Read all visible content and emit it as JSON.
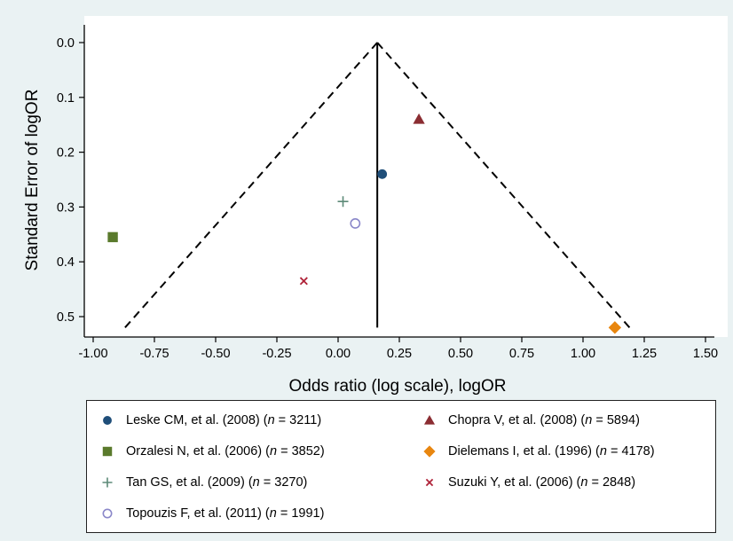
{
  "chart_data": {
    "type": "scatter",
    "subtype": "funnel-plot",
    "xlabel": "Odds ratio (log scale), logOR",
    "ylabel": "Standard Error of logOR",
    "xlim": [
      -1.0,
      1.5
    ],
    "ylim": [
      0.0,
      0.5
    ],
    "y_reversed": true,
    "x_ticks": [
      "-1.00",
      "-0.75",
      "-0.50",
      "-0.25",
      "0.00",
      "0.25",
      "0.50",
      "0.75",
      "1.00",
      "1.25",
      "1.50"
    ],
    "x_tick_values": [
      -1.0,
      -0.75,
      -0.5,
      -0.25,
      0.0,
      0.25,
      0.5,
      0.75,
      1.0,
      1.25,
      1.5
    ],
    "y_ticks": [
      "0.0",
      "0.1",
      "0.2",
      "0.3",
      "0.4",
      "0.5"
    ],
    "y_tick_values": [
      0.0,
      0.1,
      0.2,
      0.3,
      0.4,
      0.5
    ],
    "grid": false,
    "pooled_estimate": 0.16,
    "funnel": {
      "apex": [
        0.16,
        0.0
      ],
      "left_base": [
        -0.87,
        0.52
      ],
      "right_base": [
        1.19,
        0.52
      ],
      "style": "dashed"
    },
    "series": [
      {
        "name": "Leske CM, et al. (2008) (",
        "n_text": "n",
        "n_value": " = 3211)",
        "x": 0.18,
        "y": 0.24,
        "marker": "circle",
        "color": "#1f4e79"
      },
      {
        "name": "Chopra V, et al. (2008) (",
        "n_text": "n",
        "n_value": " = 5894)",
        "x": 0.33,
        "y": 0.14,
        "marker": "triangle",
        "color": "#8b2d32"
      },
      {
        "name": "Orzalesi N, et al. (2006) (",
        "n_text": "n",
        "n_value": " = 3852)",
        "x": -0.92,
        "y": 0.355,
        "marker": "square",
        "color": "#5a7a2c"
      },
      {
        "name": "Dielemans I, et al. (1996) (",
        "n_text": "n",
        "n_value": " = 4178)",
        "x": 1.13,
        "y": 0.52,
        "marker": "diamond",
        "color": "#e8860f"
      },
      {
        "name": "Tan GS, et al. (2009) (",
        "n_text": "n",
        "n_value": " = 3270)",
        "x": 0.02,
        "y": 0.29,
        "marker": "plus",
        "color": "#5d8a78"
      },
      {
        "name": "Suzuki Y, et al. (2006) (",
        "n_text": "n",
        "n_value": " = 2848)",
        "x": -0.14,
        "y": 0.435,
        "marker": "x",
        "color": "#b0243a"
      },
      {
        "name": "Topouzis F, et al. (2011) (",
        "n_text": "n",
        "n_value": " = 1991)",
        "x": 0.07,
        "y": 0.33,
        "marker": "open-circle",
        "color": "#8a87c9"
      }
    ],
    "legend_placement": "bottom"
  }
}
